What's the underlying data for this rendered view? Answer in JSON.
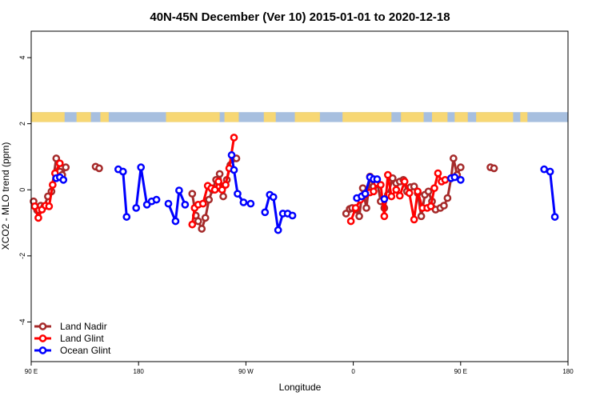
{
  "chart_data": {
    "type": "line",
    "title": "40N-45N December (Ver 10)   2015-01-01 to 2020-12-18",
    "xlabel": "Longitude",
    "ylabel": "XCO2 - MLO trend (ppm)",
    "xlim": [
      90,
      540
    ],
    "ylim": [
      -5.2,
      4.8
    ],
    "y_ticks": [
      -4,
      -2,
      0,
      2,
      4
    ],
    "x_ticks": [
      {
        "value": 90,
        "label": "90 E"
      },
      {
        "value": 180,
        "label": "180"
      },
      {
        "value": 270,
        "label": "90 W"
      },
      {
        "value": 360,
        "label": "0"
      },
      {
        "value": 450,
        "label": "90 E"
      },
      {
        "value": 540,
        "label": "180"
      }
    ],
    "x_units_note": "",
    "legend_position": "bottom-left",
    "land_ocean_strip": {
      "y_range": [
        2.05,
        2.35
      ],
      "ocean_color": "#a7bfdf",
      "land_color": "#f7d774",
      "land_segments": [
        [
          90,
          118
        ],
        [
          128,
          140
        ],
        [
          148,
          155
        ],
        [
          203,
          248
        ],
        [
          252,
          264
        ],
        [
          285,
          295
        ],
        [
          311,
          332
        ],
        [
          351,
          392
        ],
        [
          400,
          419
        ],
        [
          426,
          439
        ],
        [
          445,
          456
        ],
        [
          463,
          494
        ],
        [
          500,
          506
        ]
      ]
    },
    "series": [
      {
        "name": "Land Nadir",
        "color": "#a52a2a",
        "segments": [
          [
            [
              92,
              -0.35
            ],
            [
              95,
              -0.62
            ],
            [
              98,
              -0.48
            ],
            [
              101,
              -0.5
            ],
            [
              104,
              -0.2
            ],
            [
              107,
              -0.05
            ],
            [
              111,
              0.95
            ],
            [
              114,
              0.55
            ],
            [
              116,
              0.45
            ],
            [
              119,
              0.68
            ]
          ],
          [
            [
              144,
              0.7
            ],
            [
              147,
              0.65
            ]
          ],
          [
            [
              225,
              -0.12
            ],
            [
              228,
              -0.78
            ],
            [
              230,
              -0.95
            ],
            [
              233,
              -1.18
            ],
            [
              236,
              -0.85
            ],
            [
              239,
              -0.3
            ],
            [
              242,
              0.0
            ],
            [
              245,
              0.3
            ],
            [
              248,
              0.48
            ],
            [
              251,
              -0.2
            ],
            [
              254,
              0.3
            ],
            [
              257,
              0.75
            ],
            [
              262,
              0.95
            ]
          ],
          [
            [
              354,
              -0.72
            ],
            [
              357,
              -0.58
            ],
            [
              359,
              -0.55
            ],
            [
              362,
              -0.6
            ],
            [
              365,
              -0.8
            ],
            [
              368,
              0.05
            ],
            [
              371,
              -0.55
            ],
            [
              374,
              0.4
            ],
            [
              377,
              0.1
            ],
            [
              380,
              0.25
            ],
            [
              383,
              -0.35
            ],
            [
              386,
              -0.55
            ],
            [
              389,
              -0.15
            ],
            [
              393,
              0.35
            ],
            [
              396,
              0.2
            ],
            [
              399,
              0.25
            ],
            [
              402,
              0.3
            ],
            [
              405,
              -0.05
            ],
            [
              408,
              0.08
            ],
            [
              411,
              0.1
            ],
            [
              414,
              -0.1
            ],
            [
              417,
              -0.8
            ],
            [
              420,
              -0.15
            ],
            [
              423,
              -0.05
            ],
            [
              426,
              -0.35
            ],
            [
              429,
              -0.6
            ],
            [
              433,
              -0.55
            ],
            [
              436,
              -0.48
            ],
            [
              439,
              -0.25
            ],
            [
              442,
              0.35
            ],
            [
              444,
              0.95
            ],
            [
              447,
              0.45
            ],
            [
              450,
              0.68
            ]
          ],
          [
            [
              475,
              0.68
            ],
            [
              478,
              0.65
            ]
          ]
        ]
      },
      {
        "name": "Land Glint",
        "color": "#ff0000",
        "segments": [
          [
            [
              93,
              -0.5
            ],
            [
              96,
              -0.85
            ],
            [
              99,
              -0.6
            ],
            [
              102,
              -0.48
            ],
            [
              105,
              -0.5
            ],
            [
              108,
              0.15
            ],
            [
              110,
              0.5
            ],
            [
              114,
              0.8
            ]
          ],
          [
            [
              225,
              -1.05
            ],
            [
              227,
              -0.55
            ],
            [
              230,
              -0.45
            ],
            [
              234,
              -0.42
            ],
            [
              238,
              0.12
            ],
            [
              241,
              0.05
            ],
            [
              244,
              0.0
            ],
            [
              247,
              0.25
            ],
            [
              250,
              0.0
            ],
            [
              253,
              0.15
            ],
            [
              256,
              0.65
            ],
            [
              260,
              1.58
            ]
          ],
          [
            [
              358,
              -0.95
            ],
            [
              362,
              -0.55
            ],
            [
              366,
              -0.3
            ],
            [
              370,
              -0.15
            ],
            [
              374,
              -0.08
            ],
            [
              377,
              -0.05
            ],
            [
              380,
              0.2
            ],
            [
              383,
              0.15
            ],
            [
              386,
              -0.8
            ],
            [
              389,
              0.45
            ],
            [
              392,
              -0.2
            ],
            [
              396,
              0.0
            ],
            [
              399,
              -0.18
            ],
            [
              403,
              0.25
            ],
            [
              407,
              -0.1
            ],
            [
              411,
              -0.9
            ],
            [
              414,
              -0.05
            ],
            [
              418,
              -0.55
            ],
            [
              422,
              -0.55
            ],
            [
              425,
              -0.5
            ],
            [
              428,
              0.05
            ],
            [
              431,
              0.5
            ],
            [
              434,
              0.25
            ],
            [
              437,
              0.3
            ]
          ]
        ]
      },
      {
        "name": "Ocean Glint",
        "color": "#0000ff",
        "segments": [
          [
            [
              111,
              0.35
            ],
            [
              114,
              0.38
            ],
            [
              117,
              0.3
            ]
          ],
          [
            [
              163,
              0.62
            ],
            [
              167,
              0.55
            ],
            [
              170,
              -0.82
            ]
          ],
          [
            [
              178,
              -0.55
            ],
            [
              182,
              0.68
            ],
            [
              187,
              -0.45
            ],
            [
              191,
              -0.35
            ],
            [
              195,
              -0.3
            ]
          ],
          [
            [
              205,
              -0.42
            ],
            [
              211,
              -0.95
            ],
            [
              214,
              -0.02
            ],
            [
              219,
              -0.45
            ]
          ],
          [
            [
              258,
              1.05
            ],
            [
              260,
              0.6
            ],
            [
              263,
              -0.12
            ],
            [
              268,
              -0.38
            ],
            [
              274,
              -0.42
            ]
          ],
          [
            [
              286,
              -0.68
            ],
            [
              290,
              -0.15
            ],
            [
              293,
              -0.22
            ],
            [
              297,
              -1.22
            ],
            [
              301,
              -0.72
            ],
            [
              305,
              -0.72
            ],
            [
              309,
              -0.78
            ]
          ],
          [
            [
              363,
              -0.25
            ],
            [
              367,
              -0.2
            ],
            [
              370,
              -0.12
            ],
            [
              374,
              0.38
            ],
            [
              377,
              0.32
            ],
            [
              380,
              0.32
            ]
          ],
          [
            [
              386,
              -0.28
            ]
          ],
          [
            [
              442,
              0.35
            ],
            [
              445,
              0.38
            ],
            [
              450,
              0.3
            ]
          ],
          [
            [
              520,
              0.62
            ],
            [
              525,
              0.55
            ],
            [
              529,
              -0.82
            ]
          ]
        ]
      }
    ]
  }
}
